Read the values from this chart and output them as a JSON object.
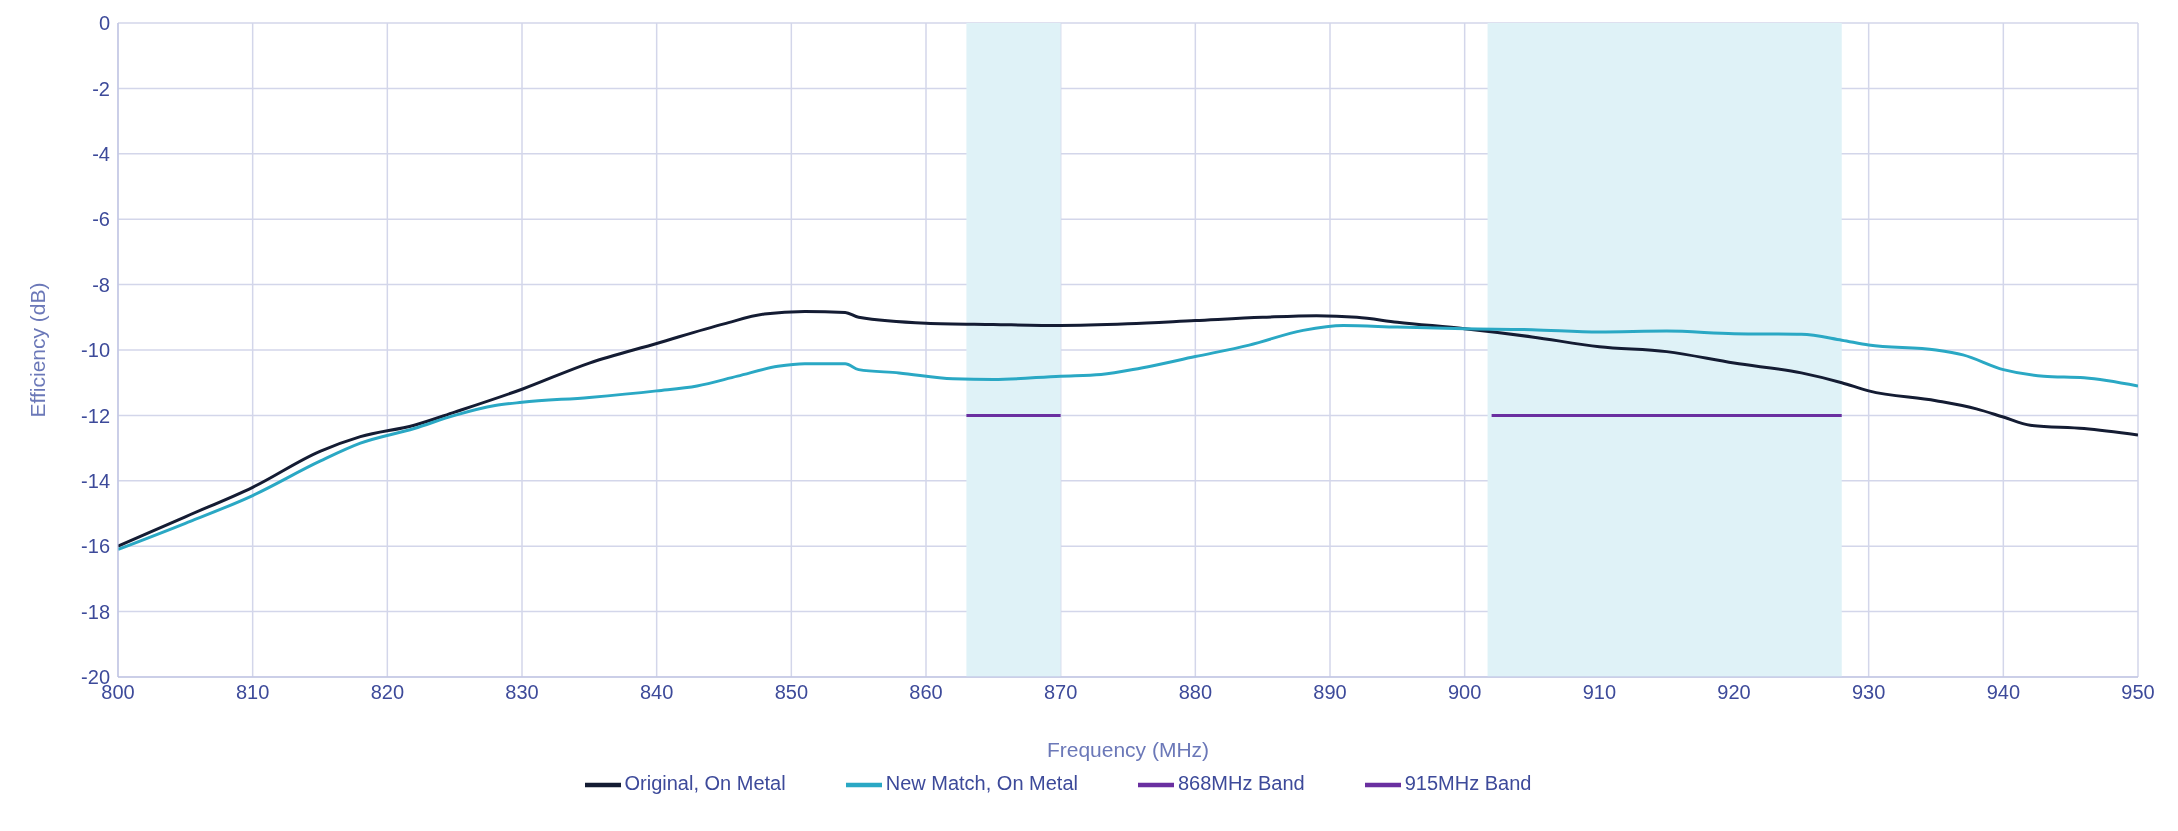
{
  "chart_data": {
    "type": "line",
    "xlabel": "Frequency (MHz)",
    "ylabel": "Efficiency (dB)",
    "xlim": [
      800,
      950
    ],
    "xticks": [
      800,
      810,
      820,
      830,
      840,
      850,
      860,
      870,
      880,
      890,
      900,
      910,
      920,
      930,
      940,
      950
    ],
    "ylim": [
      -20,
      0
    ],
    "yticks": [
      -20,
      -18,
      -16,
      -14,
      -12,
      -10,
      -8,
      -6,
      -4,
      -2,
      0
    ],
    "grid": true,
    "legend": "bottom",
    "line_style": "solid",
    "marker": "none",
    "bands": [
      {
        "axis": "x",
        "from": 863,
        "to": 870,
        "color": "#dff2f7"
      },
      {
        "axis": "x",
        "from": 901.7,
        "to": 928,
        "color": "#dff2f7"
      }
    ],
    "series": [
      {
        "name": "Original, On Metal",
        "color": "#141c33",
        "x": [
          800,
          805,
          810,
          815,
          818,
          822,
          825,
          830,
          835,
          840,
          845,
          848,
          851,
          854,
          855,
          860,
          865,
          870,
          875,
          880,
          885,
          889,
          892,
          895,
          900,
          905,
          910,
          915,
          920,
          925,
          928,
          930,
          935,
          938,
          940,
          942,
          946,
          950
        ],
        "values": [
          -16.0,
          -15.1,
          -14.2,
          -13.1,
          -12.65,
          -12.3,
          -11.9,
          -11.2,
          -10.4,
          -9.8,
          -9.2,
          -8.9,
          -8.82,
          -8.85,
          -9.0,
          -9.18,
          -9.22,
          -9.25,
          -9.2,
          -9.1,
          -9.0,
          -8.95,
          -9.0,
          -9.15,
          -9.35,
          -9.6,
          -9.9,
          -10.05,
          -10.4,
          -10.7,
          -11.0,
          -11.25,
          -11.55,
          -11.8,
          -12.05,
          -12.3,
          -12.4,
          -12.6
        ]
      },
      {
        "name": "New Match, On Metal",
        "color": "#2aa8c4",
        "x": [
          800,
          805,
          810,
          815,
          818,
          822,
          825,
          828,
          830,
          835,
          840,
          843,
          846,
          849,
          851,
          854,
          855,
          858,
          862,
          865,
          870,
          873,
          876,
          880,
          884,
          888,
          891,
          895,
          900,
          905,
          910,
          915,
          920,
          925,
          928,
          930,
          935,
          937,
          940,
          943,
          946,
          950
        ],
        "values": [
          -16.1,
          -15.3,
          -14.45,
          -13.4,
          -12.85,
          -12.4,
          -12.0,
          -11.7,
          -11.6,
          -11.45,
          -11.25,
          -11.1,
          -10.8,
          -10.5,
          -10.42,
          -10.42,
          -10.6,
          -10.7,
          -10.88,
          -10.9,
          -10.8,
          -10.75,
          -10.55,
          -10.2,
          -9.85,
          -9.4,
          -9.25,
          -9.3,
          -9.35,
          -9.38,
          -9.45,
          -9.42,
          -9.5,
          -9.52,
          -9.7,
          -9.85,
          -10.0,
          -10.15,
          -10.6,
          -10.8,
          -10.85,
          -11.1
        ]
      },
      {
        "name": "868MHz Band",
        "color": "#6a2fa0",
        "x": [
          863,
          870
        ],
        "values": [
          -12,
          -12
        ]
      },
      {
        "name": "915MHz Band",
        "color": "#6a2fa0",
        "x": [
          902,
          928
        ],
        "values": [
          -12,
          -12
        ]
      }
    ]
  }
}
